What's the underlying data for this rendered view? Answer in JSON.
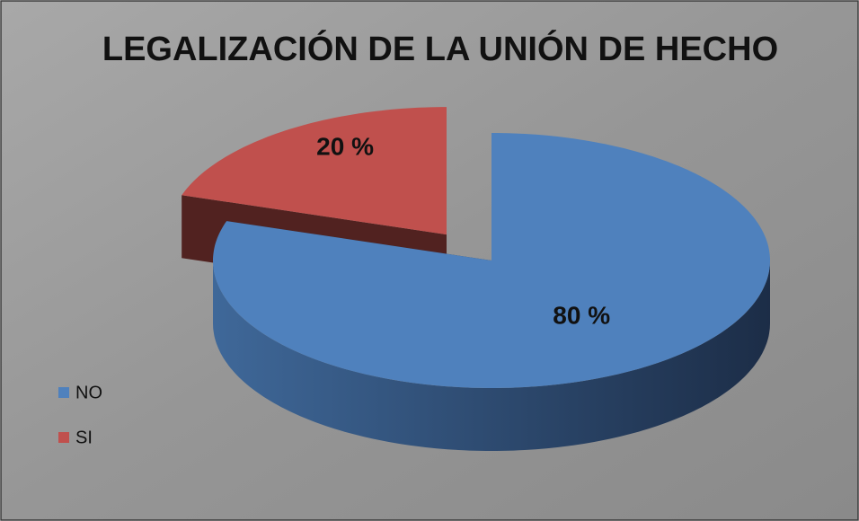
{
  "chart_data": {
    "type": "pie",
    "title": "LEGALIZACIÓN DE LA UNIÓN DE HECHO",
    "categories": [
      "NO",
      "SI"
    ],
    "values": [
      80,
      20
    ],
    "value_labels": [
      "80 %",
      "20 %"
    ],
    "colors": [
      "#4f81bd",
      "#c0504d"
    ],
    "legend": "left"
  }
}
